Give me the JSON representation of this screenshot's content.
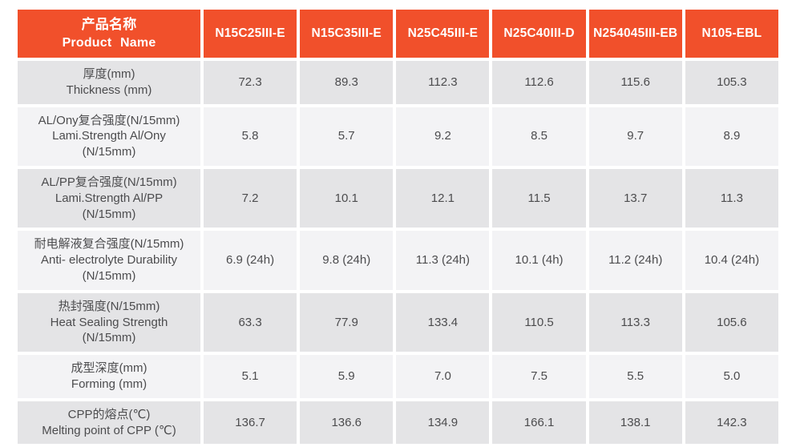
{
  "colors": {
    "page_bg": "#ffffff",
    "header_bg": "#f1502b",
    "header_text": "#ffffff",
    "row_dark": "#e4e4e6",
    "row_light": "#f3f3f5",
    "body_text": "#4c4c4e"
  },
  "table": {
    "header": {
      "product_zh": "产品名称",
      "product_en": "Product Name",
      "columns": [
        "N15C25III-E",
        "N15C35III-E",
        "N25C45III-E",
        "N25C40III-D",
        "N254045III-EB",
        "N105-EBL"
      ]
    },
    "rows": [
      {
        "label_zh": "厚度(mm)",
        "label_en": "Thickness (mm)",
        "label_en2": "",
        "values": [
          "72.3",
          "89.3",
          "112.3",
          "112.6",
          "115.6",
          "105.3"
        ]
      },
      {
        "label_zh": "AL/Ony复合强度(N/15mm)",
        "label_en": "Lami.Strength Al/Ony",
        "label_en2": "(N/15mm)",
        "values": [
          "5.8",
          "5.7",
          "9.2",
          "8.5",
          "9.7",
          "8.9"
        ]
      },
      {
        "label_zh": "AL/PP复合强度(N/15mm)",
        "label_en": "Lami.Strength Al/PP",
        "label_en2": "(N/15mm)",
        "values": [
          "7.2",
          "10.1",
          "12.1",
          "11.5",
          "13.7",
          "11.3"
        ]
      },
      {
        "label_zh": "耐电解液复合强度(N/15mm)",
        "label_en": "Anti- electrolyte Durability",
        "label_en2": "(N/15mm)",
        "values": [
          "6.9 (24h)",
          "9.8 (24h)",
          "11.3 (24h)",
          "10.1 (4h)",
          "11.2 (24h)",
          "10.4 (24h)"
        ]
      },
      {
        "label_zh": "热封强度(N/15mm)",
        "label_en": "Heat Sealing Strength",
        "label_en2": "(N/15mm)",
        "values": [
          "63.3",
          "77.9",
          "133.4",
          "110.5",
          "113.3",
          "105.6"
        ]
      },
      {
        "label_zh": "成型深度(mm)",
        "label_en": "Forming (mm)",
        "label_en2": "",
        "values": [
          "5.1",
          "5.9",
          "7.0",
          "7.5",
          "5.5",
          "5.0"
        ]
      },
      {
        "label_zh": "CPP的熔点(℃)",
        "label_en": "Melting point of CPP (℃)",
        "label_en2": "",
        "values": [
          "136.7",
          "136.6",
          "134.9",
          "166.1",
          "138.1",
          "142.3"
        ]
      }
    ]
  }
}
